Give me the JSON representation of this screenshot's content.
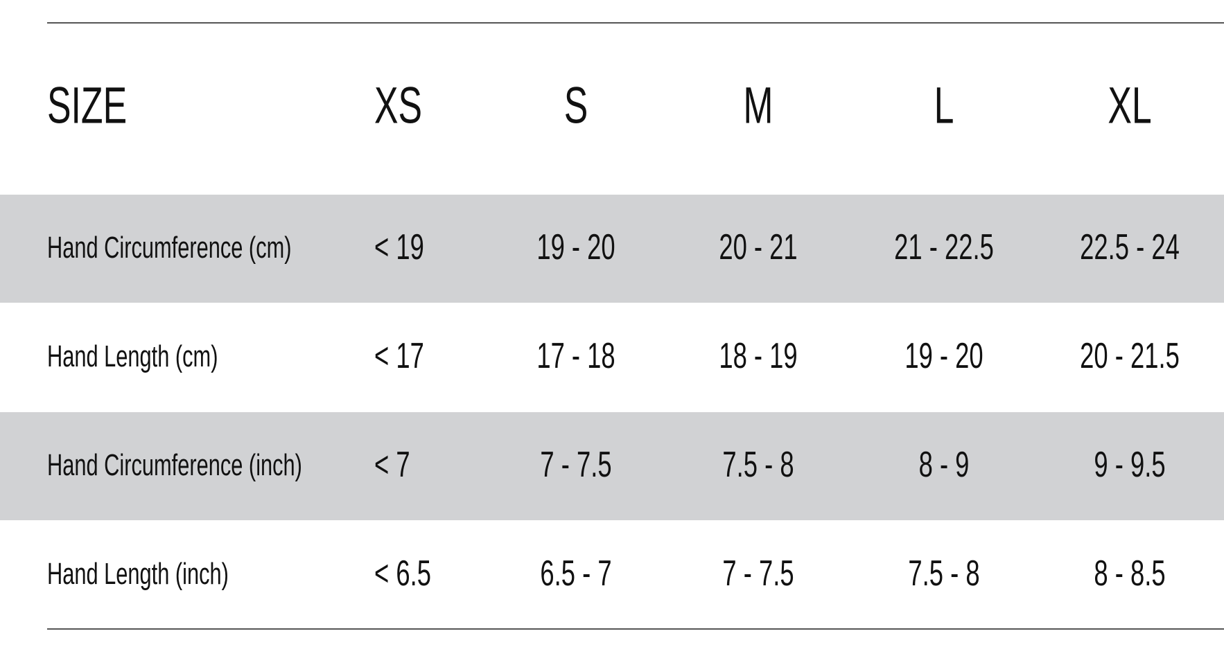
{
  "table": {
    "header": [
      "SIZE",
      "XS",
      "S",
      "M",
      "L",
      "XL"
    ],
    "rows": [
      [
        "Hand Circumference (cm)",
        "< 19",
        "19 - 20",
        "20 - 21",
        "21 - 22.5",
        "22.5 - 24"
      ],
      [
        "Hand Length (cm)",
        "< 17",
        "17 - 18",
        "18 - 19",
        "19 - 20",
        "20 - 21.5"
      ],
      [
        "Hand Circumference (inch)",
        "< 7",
        "7 - 7.5",
        "7.5 - 8",
        "8 - 9",
        "9 - 9.5"
      ],
      [
        "Hand Length (inch)",
        "< 6.5",
        "6.5 - 7",
        "7 - 7.5",
        "7.5 - 8",
        "8 - 8.5"
      ]
    ]
  }
}
